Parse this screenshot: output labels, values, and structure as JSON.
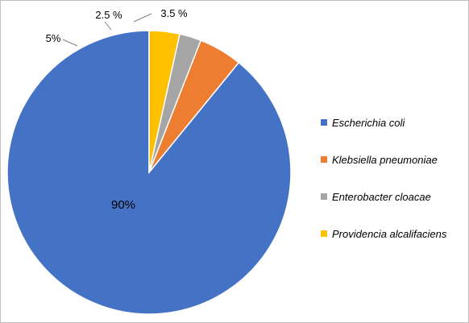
{
  "chart_data": {
    "type": "pie",
    "title": "",
    "series": [
      {
        "name": "Escherichia coli",
        "value": 90,
        "label": "90%",
        "color": "#4472C4"
      },
      {
        "name": "Klebsiella pneumoniae",
        "value": 5,
        "label": "5%",
        "color": "#ED7D31"
      },
      {
        "name": "Enterobacter cloacae",
        "value": 2.5,
        "label": "2.5 %",
        "color": "#A5A5A5"
      },
      {
        "name": "Providencia alcalifaciens",
        "value": 3.5,
        "label": "3.5 %",
        "color": "#FFC000"
      }
    ],
    "start_angle": "12 o'clock",
    "direction": "counterclockwise",
    "legend_position": "right"
  }
}
